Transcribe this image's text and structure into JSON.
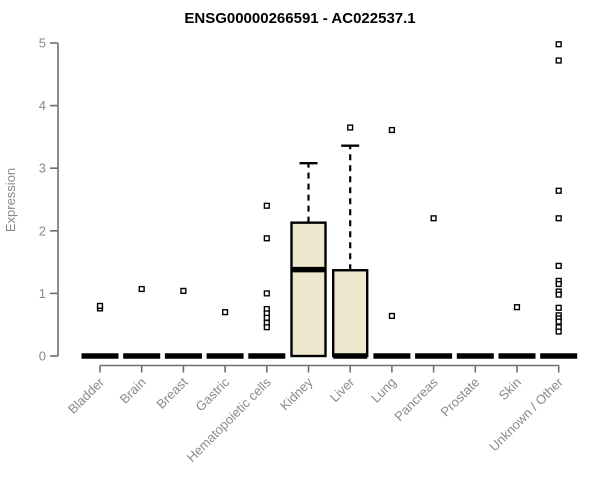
{
  "chart_data": {
    "type": "boxplot",
    "title": "ENSG00000266591 - AC022537.1",
    "xlabel": "",
    "ylabel": "Expression",
    "ylim": [
      0,
      5
    ],
    "yticks": [
      0,
      1,
      2,
      3,
      4,
      5
    ],
    "grid": false,
    "legend": false,
    "categories": [
      "Bladder",
      "Brain",
      "Breast",
      "Gastric",
      "Hematopoietic cells",
      "Kidney",
      "Liver",
      "Lung",
      "Pancreas",
      "Prostate",
      "Skin",
      "Unknown / Other"
    ],
    "series": [
      {
        "name": "Bladder",
        "q1": 0,
        "median": 0,
        "q3": 0,
        "whisker_low": 0,
        "whisker_high": 0,
        "outliers": [
          0.76,
          0.8
        ]
      },
      {
        "name": "Brain",
        "q1": 0,
        "median": 0,
        "q3": 0,
        "whisker_low": 0,
        "whisker_high": 0,
        "outliers": [
          1.07
        ]
      },
      {
        "name": "Breast",
        "q1": 0,
        "median": 0,
        "q3": 0,
        "whisker_low": 0,
        "whisker_high": 0,
        "outliers": [
          1.04
        ]
      },
      {
        "name": "Gastric",
        "q1": 0,
        "median": 0,
        "q3": 0,
        "whisker_low": 0,
        "whisker_high": 0,
        "outliers": [
          0.7
        ]
      },
      {
        "name": "Hematopoietic cells",
        "q1": 0,
        "median": 0,
        "q3": 0,
        "whisker_low": 0,
        "whisker_high": 0,
        "outliers": [
          2.4,
          1.88,
          1.0,
          0.75,
          0.68,
          0.61,
          0.53,
          0.46
        ]
      },
      {
        "name": "Kidney",
        "q1": 0,
        "median": 1.38,
        "q3": 2.13,
        "whisker_low": 0,
        "whisker_high": 3.08,
        "outliers": []
      },
      {
        "name": "Liver",
        "q1": 0,
        "median": 0,
        "q3": 1.37,
        "whisker_low": 0,
        "whisker_high": 3.36,
        "outliers": [
          3.65
        ]
      },
      {
        "name": "Lung",
        "q1": 0,
        "median": 0,
        "q3": 0,
        "whisker_low": 0,
        "whisker_high": 0,
        "outliers": [
          3.61,
          0.64
        ]
      },
      {
        "name": "Pancreas",
        "q1": 0,
        "median": 0,
        "q3": 0,
        "whisker_low": 0,
        "whisker_high": 0,
        "outliers": [
          2.2
        ]
      },
      {
        "name": "Prostate",
        "q1": 0,
        "median": 0,
        "q3": 0,
        "whisker_low": 0,
        "whisker_high": 0,
        "outliers": []
      },
      {
        "name": "Skin",
        "q1": 0,
        "median": 0,
        "q3": 0,
        "whisker_low": 0,
        "whisker_high": 0,
        "outliers": [
          0.78
        ]
      },
      {
        "name": "Unknown / Other",
        "q1": 0,
        "median": 0,
        "q3": 0,
        "whisker_low": 0,
        "whisker_high": 0,
        "outliers": [
          4.98,
          4.72,
          2.64,
          2.2,
          1.44,
          1.2,
          1.15,
          1.03,
          0.98,
          0.77,
          0.65,
          0.6,
          0.55,
          0.46,
          0.39
        ]
      }
    ],
    "colors": {
      "background": "#ffffff",
      "box_fill": "#EDE8CE",
      "box_stroke": "#000000",
      "median_color": "#000000",
      "whisker_color": "#000000",
      "outlier_fill": "#ffffff",
      "outlier_stroke": "#000000",
      "axis_line": "#6f6f6f",
      "tick_label": "#8a8a8a",
      "title_color": "#000000"
    }
  }
}
